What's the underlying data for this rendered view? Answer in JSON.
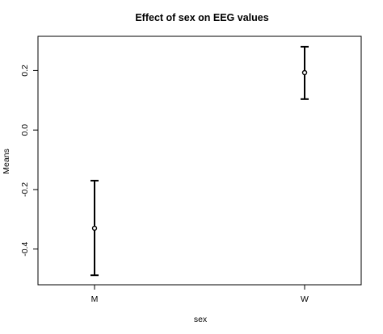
{
  "chart_data": {
    "type": "errorbar",
    "title": "Effect of sex on EEG values",
    "xlabel": "sex",
    "ylabel": "Means",
    "categories": [
      "M",
      "W"
    ],
    "means": [
      -0.33,
      0.193
    ],
    "lower": [
      -0.488,
      0.104
    ],
    "upper": [
      -0.17,
      0.28
    ],
    "ylim": [
      -0.52,
      0.315
    ],
    "yticks": [
      -0.4,
      -0.2,
      0.0,
      0.2
    ],
    "ytick_labels": [
      "-0.4",
      "-0.2",
      "0.0",
      "0.2"
    ],
    "grid": false,
    "legend": "none"
  }
}
